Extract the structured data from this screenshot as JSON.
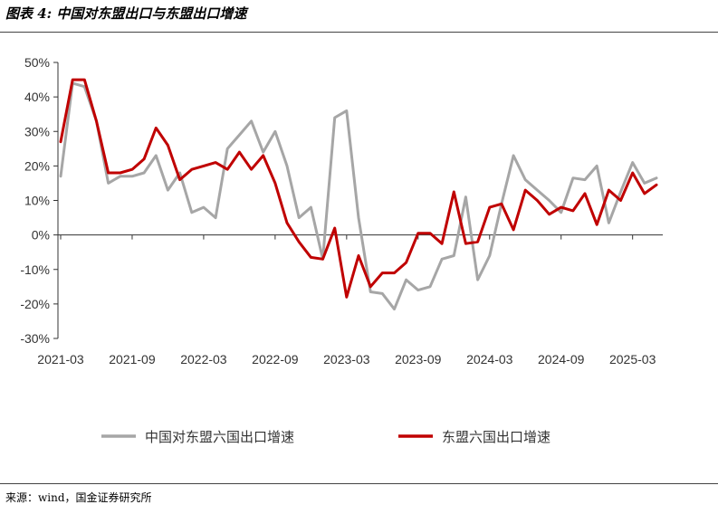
{
  "figure_title": "图表 4:  中国对东盟出口与东盟出口增速",
  "source": "来源：wind，国金证券研究所",
  "chart_data": {
    "type": "line",
    "title": "",
    "xlabel": "",
    "ylabel": "",
    "ylim": [
      -30,
      50
    ],
    "yticks": [
      50,
      40,
      30,
      20,
      10,
      0,
      -10,
      -20,
      -30
    ],
    "ytick_labels": [
      "50%",
      "40%",
      "30%",
      "20%",
      "10%",
      "0%",
      "-10%",
      "-20%",
      "-30%"
    ],
    "x": [
      "2021-03",
      "2021-04",
      "2021-05",
      "2021-06",
      "2021-07",
      "2021-08",
      "2021-09",
      "2021-10",
      "2021-11",
      "2021-12",
      "2022-01",
      "2022-02",
      "2022-03",
      "2022-04",
      "2022-05",
      "2022-06",
      "2022-07",
      "2022-08",
      "2022-09",
      "2022-10",
      "2022-11",
      "2022-12",
      "2023-01",
      "2023-02",
      "2023-03",
      "2023-04",
      "2023-05",
      "2023-06",
      "2023-07",
      "2023-08",
      "2023-09",
      "2023-10",
      "2023-11",
      "2023-12",
      "2024-01",
      "2024-02",
      "2024-03",
      "2024-04",
      "2024-05",
      "2024-06",
      "2024-07",
      "2024-08",
      "2024-09",
      "2024-10",
      "2024-11",
      "2024-12",
      "2025-01",
      "2025-02",
      "2025-03",
      "2025-04",
      "2025-05"
    ],
    "xtick_labels": [
      "2021-03",
      "2021-09",
      "2022-03",
      "2022-09",
      "2023-03",
      "2023-09",
      "2024-03",
      "2024-09",
      "2025-03"
    ],
    "xtick_every": 6,
    "grid": false,
    "legend_position": "bottom",
    "series": [
      {
        "name": "中国对东盟六国出口增速",
        "color": "#A6A6A6",
        "values": [
          17,
          44,
          43,
          33,
          15,
          17,
          17,
          18,
          23,
          13,
          18,
          6.5,
          8,
          5,
          25,
          29,
          33,
          24,
          30,
          20,
          5,
          8,
          -7,
          34,
          36,
          5,
          -16.5,
          -17,
          -21.5,
          -13,
          -16,
          -15,
          -7,
          -6,
          11,
          -13,
          -6,
          9,
          23,
          16,
          13,
          10,
          6.5,
          16.5,
          16,
          20,
          3.5,
          12.5,
          21,
          15,
          16.5
        ]
      },
      {
        "name": "东盟六国出口增速",
        "color": "#C00000",
        "values": [
          27,
          45,
          45,
          33,
          18,
          18,
          19,
          22,
          31,
          26,
          16,
          19,
          20,
          21,
          19,
          24,
          19,
          23,
          15,
          3.5,
          -2,
          -6.5,
          -7,
          2,
          -18,
          -6,
          -15,
          -11,
          -11,
          -8,
          0.5,
          0.5,
          -2.5,
          12.5,
          -2.5,
          -2,
          8,
          9,
          1.5,
          13,
          10,
          6,
          8,
          7,
          12,
          3,
          13,
          10,
          18,
          12,
          14.5
        ]
      }
    ]
  }
}
